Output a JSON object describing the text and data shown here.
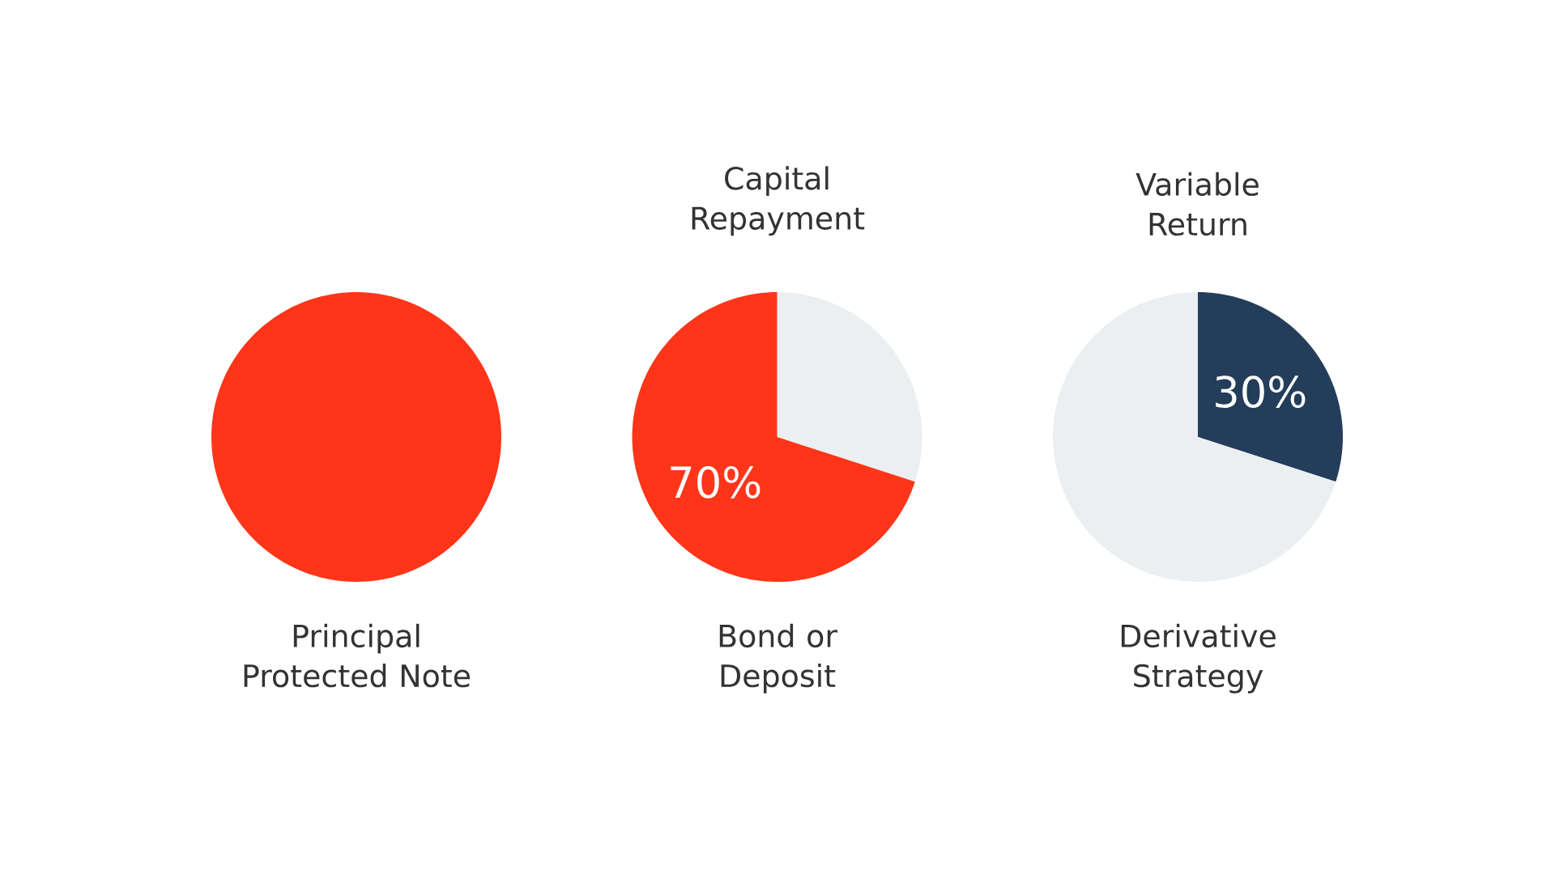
{
  "chart_data": [
    {
      "type": "pie",
      "xlabel": "Principal Protected Note",
      "categories": [
        null
      ],
      "values": [
        100
      ],
      "colors": [
        "#ff3519"
      ]
    },
    {
      "type": "pie",
      "title": "Capital Repayment",
      "xlabel": "Bond or Deposit",
      "categories": [
        null,
        null
      ],
      "values": [
        30,
        70
      ],
      "colors": [
        "#ebeff2",
        "#ff3519"
      ],
      "value_labels": [
        null,
        "70%"
      ]
    },
    {
      "type": "pie",
      "title": "Variable Return",
      "xlabel": "Derivative Strategy",
      "categories": [
        null,
        null
      ],
      "values": [
        30,
        70
      ],
      "colors": [
        "#233d5a",
        "#ebeff2"
      ],
      "value_labels": [
        "30%",
        null
      ]
    }
  ]
}
